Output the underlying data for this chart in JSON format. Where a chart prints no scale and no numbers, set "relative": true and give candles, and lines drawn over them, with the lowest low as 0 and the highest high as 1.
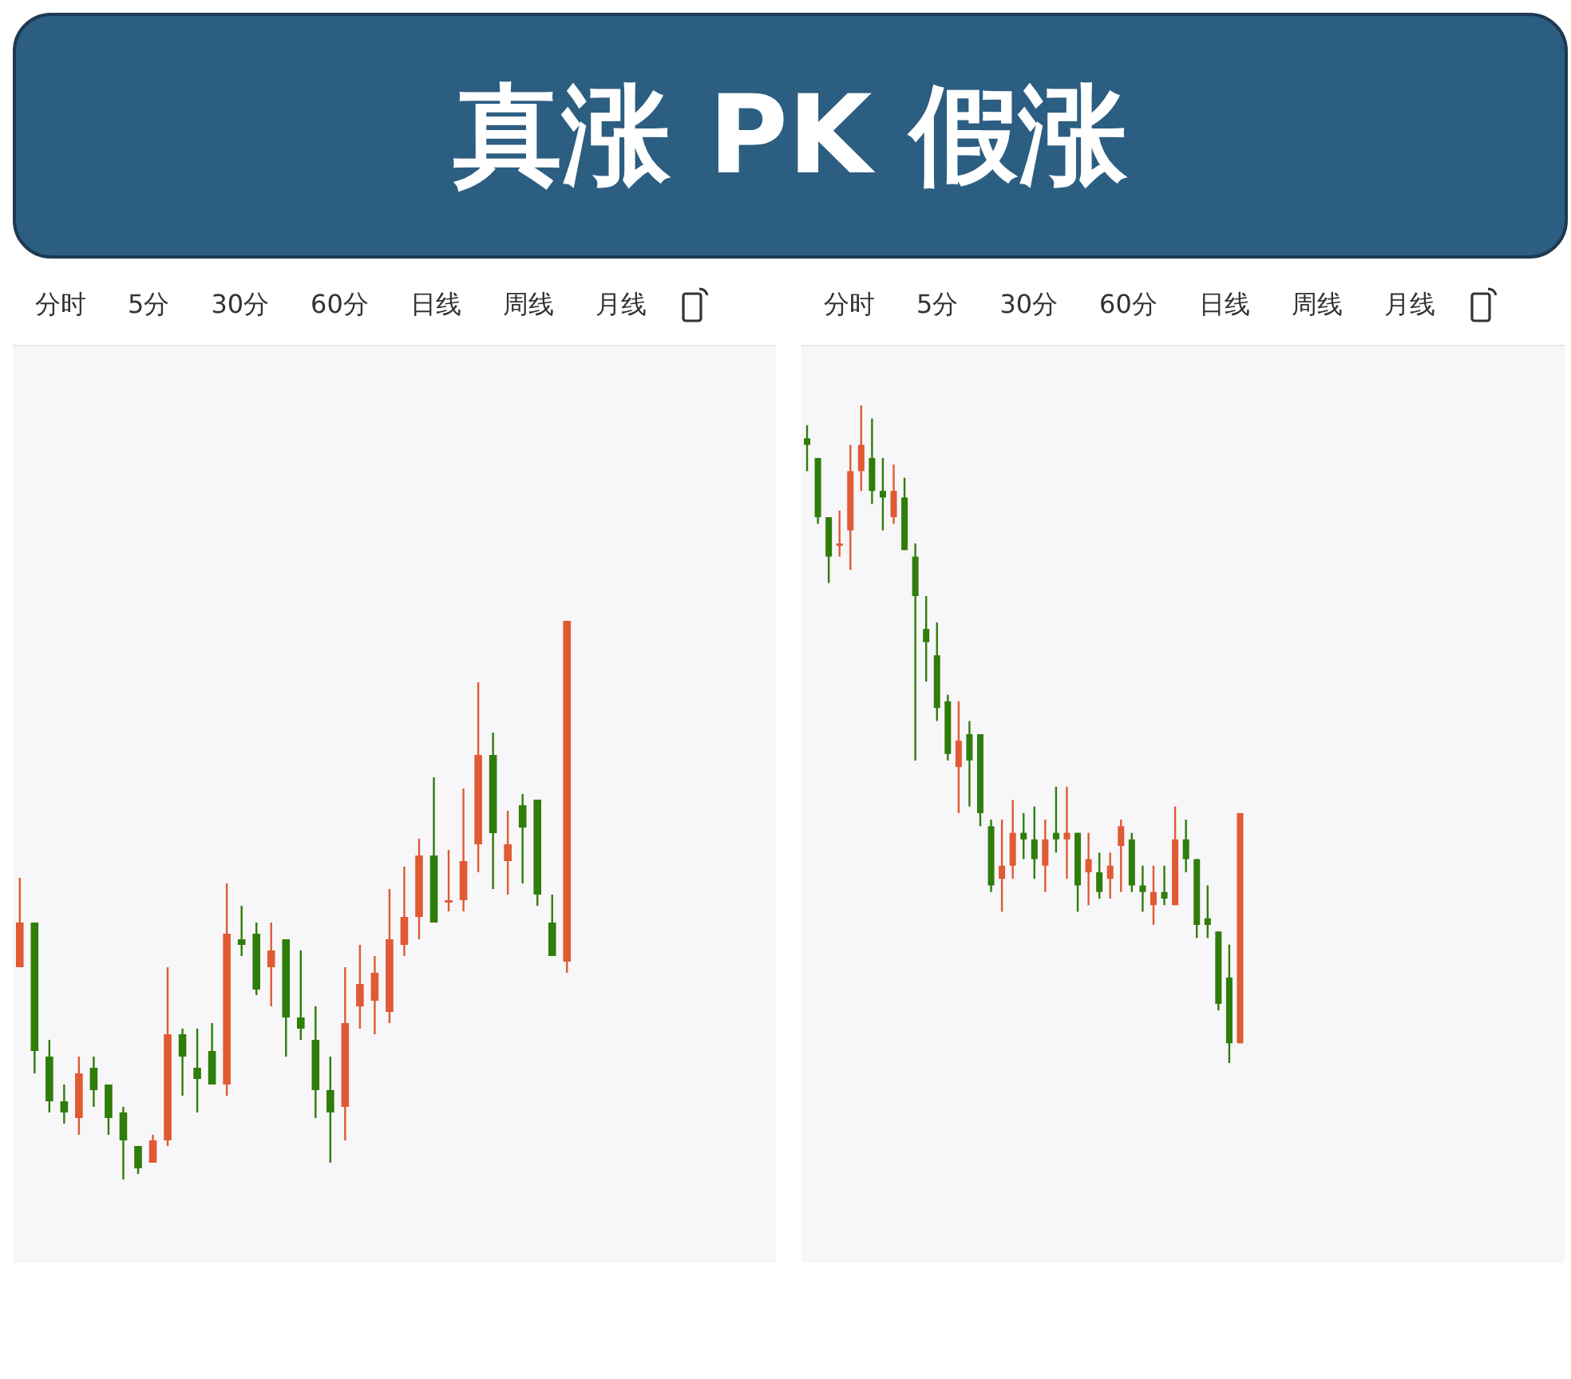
{
  "chart_data": [
    {
      "type": "candlestick",
      "title": "真涨 PK 假涨",
      "relative": true,
      "tick_labels": false,
      "annotations": [
        "分时",
        "5分",
        "30分",
        "60分",
        "日线",
        "周线",
        "月线"
      ],
      "categories": [
        null,
        null,
        null,
        null,
        null,
        null,
        null,
        null,
        null,
        null,
        null,
        null,
        null,
        null,
        null,
        null,
        null,
        null,
        null,
        null,
        null,
        null,
        null,
        null,
        null,
        null,
        null,
        null,
        null,
        null,
        null,
        null,
        null,
        null,
        null,
        null,
        null,
        null
      ],
      "ohlc": [
        [
          0.38,
          0.54,
          0.38,
          0.46
        ],
        [
          0.46,
          0.46,
          0.19,
          0.23
        ],
        [
          0.22,
          0.25,
          0.12,
          0.14
        ],
        [
          0.14,
          0.17,
          0.1,
          0.12
        ],
        [
          0.11,
          0.22,
          0.08,
          0.19
        ],
        [
          0.2,
          0.22,
          0.13,
          0.16
        ],
        [
          0.17,
          0.17,
          0.08,
          0.11
        ],
        [
          0.12,
          0.13,
          0,
          0.07
        ],
        [
          0.06,
          0.06,
          0.01,
          0.02
        ],
        [
          0.03,
          0.08,
          0.03,
          0.07
        ],
        [
          0.07,
          0.38,
          0.06,
          0.26
        ],
        [
          0.26,
          0.27,
          0.15,
          0.22
        ],
        [
          0.2,
          0.27,
          0.12,
          0.18
        ],
        [
          0.23,
          0.28,
          0.17,
          0.17
        ],
        [
          0.17,
          0.53,
          0.15,
          0.44
        ],
        [
          0.43,
          0.49,
          0.4,
          0.42
        ],
        [
          0.44,
          0.46,
          0.33,
          0.34
        ],
        [
          0.38,
          0.46,
          0.31,
          0.41
        ],
        [
          0.43,
          0.43,
          0.22,
          0.29
        ],
        [
          0.29,
          0.41,
          0.25,
          0.27
        ],
        [
          0.25,
          0.31,
          0.11,
          0.16
        ],
        [
          0.16,
          0.22,
          0.03,
          0.12
        ],
        [
          0.13,
          0.38,
          0.07,
          0.28
        ],
        [
          0.31,
          0.42,
          0.27,
          0.35
        ],
        [
          0.32,
          0.4,
          0.26,
          0.37
        ],
        [
          0.3,
          0.52,
          0.28,
          0.43
        ],
        [
          0.42,
          0.56,
          0.4,
          0.47
        ],
        [
          0.47,
          0.61,
          0.43,
          0.58
        ],
        [
          0.58,
          0.72,
          0.46,
          0.46
        ],
        [
          0.5,
          0.59,
          0.48,
          0.5
        ],
        [
          0.5,
          0.7,
          0.48,
          0.57
        ],
        [
          0.6,
          0.89,
          0.55,
          0.76
        ],
        [
          0.76,
          0.8,
          0.52,
          0.62
        ],
        [
          0.57,
          0.66,
          0.51,
          0.6
        ],
        [
          0.67,
          0.69,
          0.53,
          0.63
        ],
        [
          0.68,
          0.68,
          0.49,
          0.51
        ],
        [
          0.46,
          0.51,
          0.4,
          0.4
        ],
        [
          0.39,
          1,
          0.37,
          1
        ]
      ],
      "colors": [
        "#e05a33",
        "#2f7d0a",
        "#2f7d0a",
        "#2f7d0a",
        "#e05a33",
        "#2f7d0a",
        "#2f7d0a",
        "#2f7d0a",
        "#2f7d0a",
        "#e05a33",
        "#e05a33",
        "#2f7d0a",
        "#2f7d0a",
        "#2f7d0a",
        "#e05a33",
        "#2f7d0a",
        "#2f7d0a",
        "#e05a33",
        "#2f7d0a",
        "#2f7d0a",
        "#2f7d0a",
        "#2f7d0a",
        "#e05a33",
        "#e05a33",
        "#e05a33",
        "#e05a33",
        "#e05a33",
        "#e05a33",
        "#2f7d0a",
        "#e05a33",
        "#e05a33",
        "#e05a33",
        "#2f7d0a",
        "#e05a33",
        "#2f7d0a",
        "#2f7d0a",
        "#2f7d0a",
        "#e05a33"
      ]
    },
    {
      "type": "candlestick",
      "relative": true,
      "tick_labels": false,
      "annotations": [
        "分时",
        "5分",
        "30分",
        "60分",
        "日线",
        "周线",
        "月线"
      ],
      "categories": [
        null,
        null,
        null,
        null,
        null,
        null,
        null,
        null,
        null,
        null,
        null,
        null,
        null,
        null,
        null,
        null,
        null,
        null,
        null,
        null,
        null,
        null,
        null,
        null,
        null,
        null,
        null,
        null,
        null,
        null,
        null,
        null,
        null,
        null,
        null,
        null,
        null,
        null,
        null,
        null,
        null
      ],
      "ohlc": [
        [
          0.95,
          0.97,
          0.9,
          0.94
        ],
        [
          0.92,
          0.92,
          0.82,
          0.83
        ],
        [
          0.83,
          0.83,
          0.73,
          0.77
        ],
        [
          0.79,
          0.84,
          0.77,
          0.79
        ],
        [
          0.81,
          0.94,
          0.75,
          0.9
        ],
        [
          0.9,
          1,
          0.87,
          0.94
        ],
        [
          0.92,
          0.98,
          0.85,
          0.87
        ],
        [
          0.87,
          0.92,
          0.81,
          0.86
        ],
        [
          0.83,
          0.91,
          0.82,
          0.87
        ],
        [
          0.86,
          0.89,
          0.78,
          0.78
        ],
        [
          0.77,
          0.79,
          0.46,
          0.71
        ],
        [
          0.66,
          0.71,
          0.58,
          0.64
        ],
        [
          0.62,
          0.67,
          0.52,
          0.54
        ],
        [
          0.55,
          0.56,
          0.46,
          0.47
        ],
        [
          0.45,
          0.55,
          0.38,
          0.49
        ],
        [
          0.5,
          0.52,
          0.39,
          0.46
        ],
        [
          0.5,
          0.5,
          0.36,
          0.38
        ],
        [
          0.36,
          0.37,
          0.26,
          0.27
        ],
        [
          0.28,
          0.37,
          0.23,
          0.3
        ],
        [
          0.3,
          0.4,
          0.28,
          0.35
        ],
        [
          0.35,
          0.38,
          0.31,
          0.34
        ],
        [
          0.34,
          0.39,
          0.28,
          0.31
        ],
        [
          0.3,
          0.37,
          0.26,
          0.34
        ],
        [
          0.35,
          0.42,
          0.32,
          0.34
        ],
        [
          0.34,
          0.42,
          0.28,
          0.35
        ],
        [
          0.35,
          0.35,
          0.23,
          0.27
        ],
        [
          0.29,
          0.35,
          0.24,
          0.31
        ],
        [
          0.29,
          0.32,
          0.25,
          0.26
        ],
        [
          0.28,
          0.32,
          0.25,
          0.3
        ],
        [
          0.33,
          0.37,
          0.26,
          0.36
        ],
        [
          0.34,
          0.35,
          0.26,
          0.27
        ],
        [
          0.27,
          0.3,
          0.23,
          0.26
        ],
        [
          0.24,
          0.3,
          0.21,
          0.26
        ],
        [
          0.26,
          0.3,
          0.24,
          0.25
        ],
        [
          0.24,
          0.39,
          0.24,
          0.34
        ],
        [
          0.34,
          0.37,
          0.29,
          0.31
        ],
        [
          0.31,
          0.31,
          0.19,
          0.21
        ],
        [
          0.22,
          0.27,
          0.19,
          0.21
        ],
        [
          0.2,
          0.2,
          0.08,
          0.09
        ],
        [
          0.13,
          0.18,
          0,
          0.03
        ],
        [
          0.03,
          0.38,
          0.03,
          0.38
        ]
      ],
      "colors": [
        "#2f7d0a",
        "#2f7d0a",
        "#2f7d0a",
        "#e05a33",
        "#e05a33",
        "#e05a33",
        "#2f7d0a",
        "#2f7d0a",
        "#e05a33",
        "#2f7d0a",
        "#2f7d0a",
        "#2f7d0a",
        "#2f7d0a",
        "#2f7d0a",
        "#e05a33",
        "#2f7d0a",
        "#2f7d0a",
        "#2f7d0a",
        "#e05a33",
        "#e05a33",
        "#2f7d0a",
        "#2f7d0a",
        "#e05a33",
        "#2f7d0a",
        "#e05a33",
        "#2f7d0a",
        "#e05a33",
        "#2f7d0a",
        "#e05a33",
        "#e05a33",
        "#2f7d0a",
        "#2f7d0a",
        "#e05a33",
        "#2f7d0a",
        "#e05a33",
        "#2f7d0a",
        "#2f7d0a",
        "#2f7d0a",
        "#2f7d0a",
        "#2f7d0a",
        "#e05a33"
      ]
    }
  ]
}
